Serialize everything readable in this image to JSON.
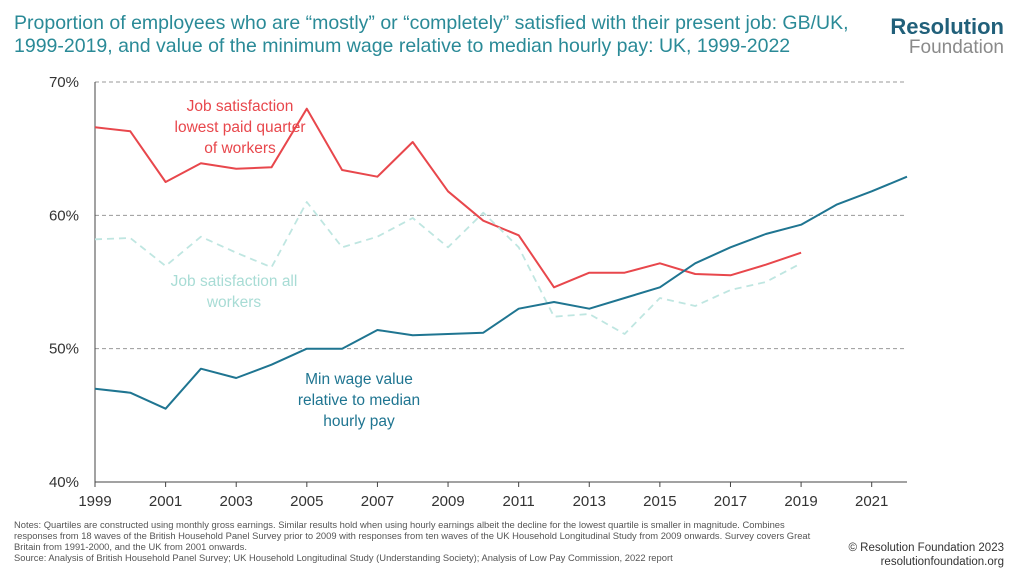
{
  "header": {
    "title": "Proportion of employees who are “mostly” or “completely” satisfied with their present job: GB/UK, 1999-2019, and value of the minimum wage relative to median hourly pay: UK, 1999-2022",
    "brand_line1": "Resolution",
    "brand_line2": "Foundation"
  },
  "footer": {
    "notes": "Notes: Quartiles are constructed using monthly gross earnings. Similar results hold when using hourly earnings albeit the decline for the lowest quartile is smaller in magnitude. Combines responses from 18 waves of the British Household Panel Survey prior to 2009 with responses from ten waves of the UK Household Longitudinal Study from 2009 onwards. Survey covers Great Britain from 1991-2000, and the UK from 2001 onwards.",
    "source": "Source: Analysis of British Household Panel Survey; UK Household Longitudinal Study (Understanding Society); Analysis of Low Pay Commission, 2022 report",
    "copyright": "© Resolution Foundation 2023",
    "website": "resolutionfoundation.org"
  },
  "chart_data": {
    "type": "line",
    "ylim": [
      40,
      70
    ],
    "xlim": [
      1999,
      2022
    ],
    "y_ticks": [
      "40%",
      "50%",
      "60%",
      "70%"
    ],
    "y_tick_values": [
      40,
      50,
      60,
      70
    ],
    "x_ticks": [
      "1999",
      "2001",
      "2003",
      "2005",
      "2007",
      "2009",
      "2011",
      "2013",
      "2015",
      "2017",
      "2019",
      "2021"
    ],
    "x_tick_values": [
      1999,
      2001,
      2003,
      2005,
      2007,
      2009,
      2011,
      2013,
      2015,
      2017,
      2019,
      2021
    ],
    "grid": "horizontal dashed",
    "series": [
      {
        "name": "Job satisfaction lowest paid quarter of workers",
        "label_lines": [
          "Job satisfaction",
          "lowest paid quarter",
          "of workers"
        ],
        "color": "#e8474c",
        "style": "solid",
        "x": [
          1999,
          2000,
          2001,
          2002,
          2003,
          2004,
          2005,
          2006,
          2007,
          2008,
          2009,
          2010,
          2011,
          2012,
          2013,
          2014,
          2015,
          2016,
          2017,
          2018,
          2019
        ],
        "y": [
          66.6,
          66.3,
          62.5,
          63.9,
          63.5,
          63.6,
          68.0,
          63.4,
          62.9,
          65.5,
          61.8,
          59.6,
          58.5,
          54.6,
          55.7,
          55.7,
          56.4,
          55.6,
          55.5,
          56.3,
          57.2
        ]
      },
      {
        "name": "Job satisfaction all workers",
        "label_lines": [
          "Job satisfaction all",
          "workers"
        ],
        "color": "#bfe6e1",
        "style": "dashed",
        "x": [
          1999,
          2000,
          2001,
          2002,
          2003,
          2004,
          2005,
          2006,
          2007,
          2008,
          2009,
          2010,
          2011,
          2012,
          2013,
          2014,
          2015,
          2016,
          2017,
          2018,
          2019
        ],
        "y": [
          58.2,
          58.3,
          56.2,
          58.4,
          57.2,
          56.1,
          61.0,
          57.6,
          58.4,
          59.8,
          57.6,
          60.2,
          57.6,
          52.4,
          52.6,
          51.1,
          53.8,
          53.2,
          54.4,
          55.0,
          56.4
        ]
      },
      {
        "name": "Min wage value relative to median hourly pay",
        "label_lines": [
          "Min wage value",
          "relative to median",
          "hourly pay"
        ],
        "color": "#1f7591",
        "style": "solid",
        "x": [
          1999,
          2000,
          2001,
          2002,
          2003,
          2004,
          2005,
          2006,
          2007,
          2008,
          2009,
          2010,
          2011,
          2012,
          2013,
          2014,
          2015,
          2016,
          2017,
          2018,
          2019,
          2020,
          2021,
          2022
        ],
        "y": [
          47.0,
          46.7,
          45.5,
          48.5,
          47.8,
          48.8,
          50.0,
          50.0,
          51.4,
          51.0,
          51.1,
          51.2,
          53.0,
          53.5,
          53.0,
          53.8,
          54.6,
          56.4,
          57.6,
          58.6,
          59.3,
          60.8,
          61.8,
          62.9
        ]
      }
    ]
  }
}
